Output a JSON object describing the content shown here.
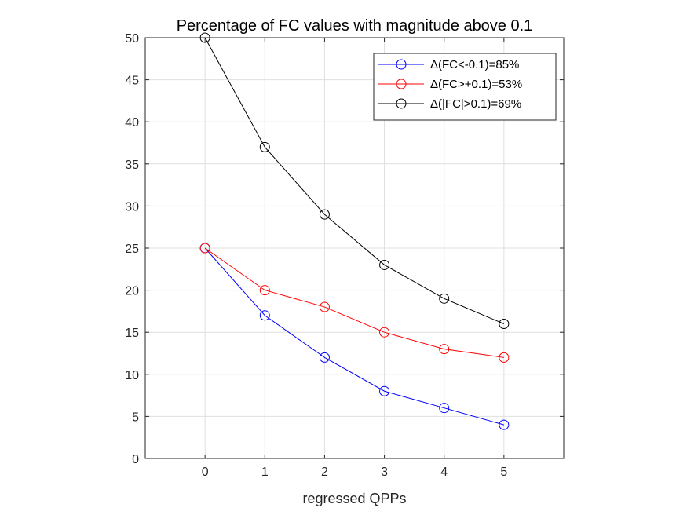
{
  "chart_data": {
    "type": "line",
    "title": "Percentage of FC values with magnitude above 0.1",
    "xlabel": "regressed QPPs",
    "ylabel": "",
    "xlim": [
      -1,
      6
    ],
    "ylim": [
      0,
      50
    ],
    "xticks": [
      0,
      1,
      2,
      3,
      4,
      5
    ],
    "yticks": [
      0,
      5,
      10,
      15,
      20,
      25,
      30,
      35,
      40,
      45,
      50
    ],
    "grid": true,
    "legend_position": "top-right",
    "marker": "circle",
    "x": [
      0,
      1,
      2,
      3,
      4,
      5
    ],
    "series": [
      {
        "name": "Δ(FC<-0.1)=85%",
        "color": "#0000ff",
        "values": [
          25,
          17,
          12,
          8,
          6,
          4
        ]
      },
      {
        "name": "Δ(FC>+0.1)=53%",
        "color": "#ff0000",
        "values": [
          25,
          20,
          18,
          15,
          13,
          12
        ]
      },
      {
        "name": "Δ(|FC|>0.1)=69%",
        "color": "#000000",
        "values": [
          50,
          37,
          29,
          23,
          19,
          16
        ]
      }
    ]
  }
}
